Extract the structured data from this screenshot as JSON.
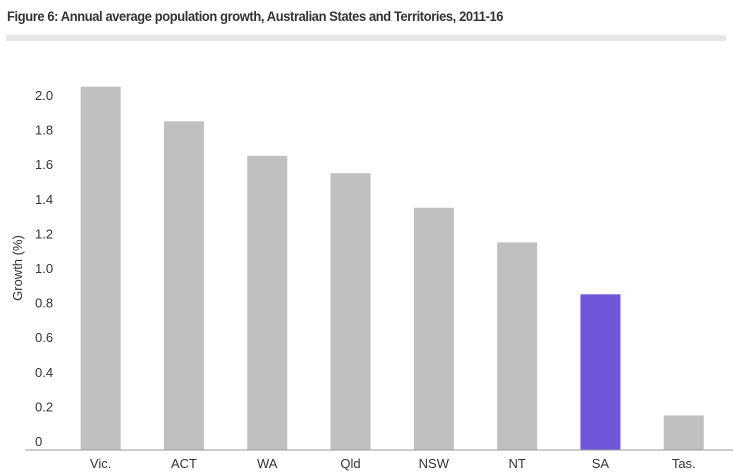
{
  "chart_data": {
    "type": "bar",
    "title": "Figure 6: Annual average population growth, Australian States and Territories, 2011-16",
    "xlabel": "",
    "ylabel": "Growth (%)",
    "ylim": [
      0,
      2.0
    ],
    "yticks": [
      "0",
      "0.2",
      "0.4",
      "0.6",
      "0.8",
      "1.0",
      "1.2",
      "1.4",
      "1.6",
      "1.8",
      "2.0"
    ],
    "categories": [
      "Vic.",
      "ACT",
      "WA",
      "Qld",
      "NSW",
      "NT",
      "SA",
      "Tas."
    ],
    "values": [
      2.1,
      1.9,
      1.7,
      1.6,
      1.4,
      1.2,
      0.9,
      0.2
    ],
    "highlight": "SA",
    "colors": {
      "default": "#c0c0c0",
      "highlight": "#6f55d9",
      "axis": "#999999"
    },
    "grid": false,
    "legend": "none"
  }
}
